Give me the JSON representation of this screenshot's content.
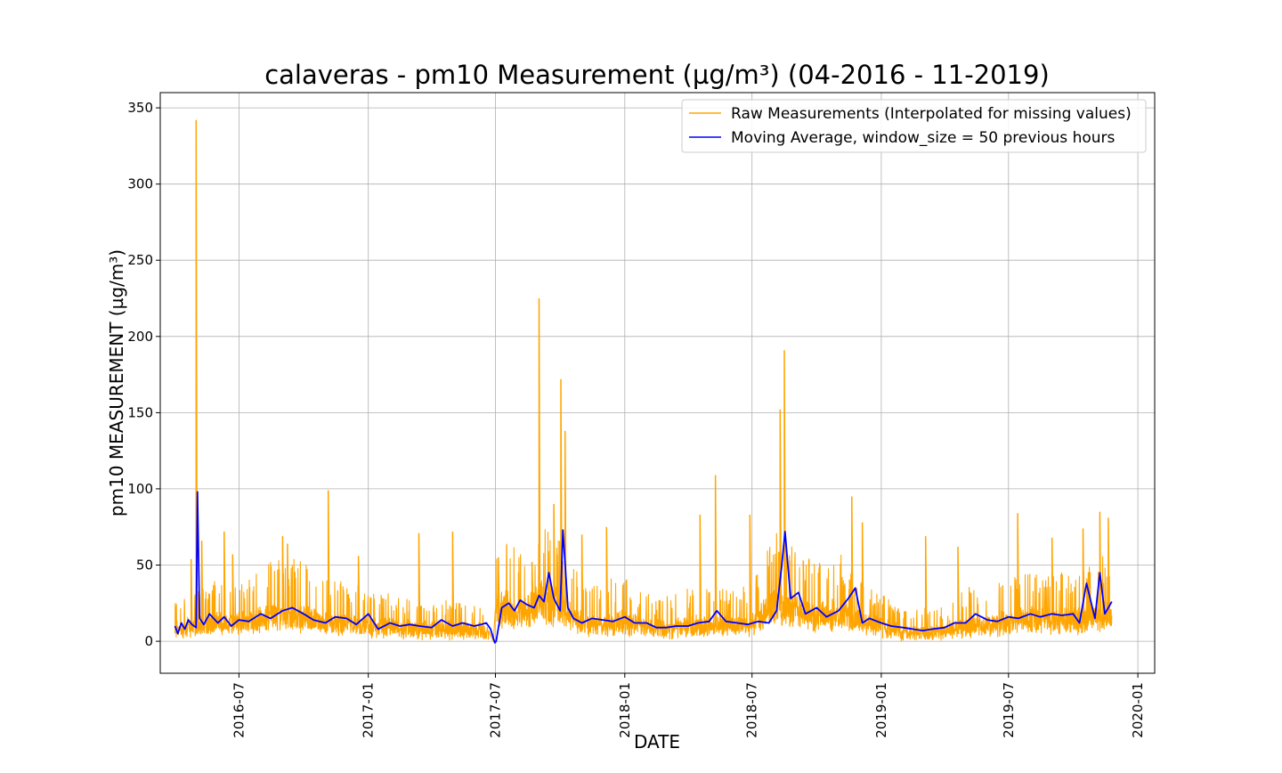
{
  "chart_data": {
    "type": "line",
    "title": "calaveras - pm10 Measurement (µg/m³) (04-2016 - 11-2019)",
    "xlabel": "DATE",
    "ylabel": "pm10 MEASUREMENT (µg/m³)",
    "xlim": [
      "2016-03-11",
      "2020-01-25"
    ],
    "ylim": [
      -21,
      360
    ],
    "yticks": [
      0,
      50,
      100,
      150,
      200,
      250,
      300,
      350
    ],
    "xticks": [
      "2016-07",
      "2017-01",
      "2017-07",
      "2018-01",
      "2018-07",
      "2019-01",
      "2019-07",
      "2020-01"
    ],
    "grid": true,
    "legend_position": "top-right",
    "series": [
      {
        "name": "Raw Measurements (Interpolated for missing values)",
        "color": "#ffa500",
        "style": "dense-noisy",
        "base": {
          "x": [
            "2016-04-01",
            "2016-05-01",
            "2016-06-01",
            "2016-07-01",
            "2016-08-01",
            "2016-09-01",
            "2016-10-01",
            "2016-11-01",
            "2016-12-01",
            "2017-01-01",
            "2017-02-01",
            "2017-03-01",
            "2017-04-01",
            "2017-05-01",
            "2017-06-01",
            "2017-06-20",
            "2017-06-28",
            "2017-07-01",
            "2017-07-20",
            "2017-08-01",
            "2017-08-15",
            "2017-09-01",
            "2017-10-01",
            "2017-11-01",
            "2017-12-01",
            "2018-01-01",
            "2018-02-01",
            "2018-03-01",
            "2018-04-01",
            "2018-05-01",
            "2018-06-01",
            "2018-07-01",
            "2018-08-01",
            "2018-09-01",
            "2018-10-01",
            "2018-11-01",
            "2018-12-01",
            "2019-01-01",
            "2019-02-01",
            "2019-03-01",
            "2019-04-01",
            "2019-05-01",
            "2019-06-01",
            "2019-07-01",
            "2019-08-01",
            "2019-09-01",
            "2019-10-01",
            "2019-11-01",
            "2019-11-25"
          ],
          "y": [
            10,
            12,
            15,
            14,
            17,
            20,
            18,
            15,
            13,
            12,
            11,
            10,
            10,
            10,
            10,
            8,
            0,
            22,
            24,
            20,
            22,
            28,
            25,
            14,
            13,
            15,
            11,
            10,
            12,
            13,
            12,
            14,
            25,
            22,
            18,
            20,
            15,
            12,
            8,
            8,
            9,
            12,
            12,
            15,
            17,
            16,
            16,
            18,
            20
          ]
        },
        "peaks": {
          "x": [
            "2016-04-24",
            "2016-05-01",
            "2016-05-09",
            "2016-06-10",
            "2016-06-22",
            "2016-09-01",
            "2016-09-08",
            "2016-11-05",
            "2016-12-18",
            "2017-03-14",
            "2017-05-01",
            "2017-07-05",
            "2017-08-22",
            "2017-09-01",
            "2017-09-22",
            "2017-10-02",
            "2017-10-08",
            "2017-11-01",
            "2017-12-06",
            "2018-04-18",
            "2018-05-10",
            "2018-06-28",
            "2018-08-10",
            "2018-08-16",
            "2018-09-12",
            "2018-11-20",
            "2018-12-05",
            "2019-03-05",
            "2019-04-20",
            "2019-07-14",
            "2019-09-01",
            "2019-10-15",
            "2019-11-08",
            "2019-11-20"
          ],
          "y": [
            54,
            342,
            66,
            72,
            57,
            69,
            64,
            99,
            56,
            71,
            72,
            55,
            52,
            225,
            90,
            172,
            138,
            70,
            75,
            83,
            109,
            83,
            152,
            191,
            53,
            95,
            78,
            69,
            62,
            84,
            68,
            74,
            85,
            81
          ]
        }
      },
      {
        "name": "Moving Average, window_size = 50 previous hours",
        "color": "#0000ff",
        "style": "smooth",
        "x": [
          "2016-04-01",
          "2016-04-05",
          "2016-04-10",
          "2016-04-15",
          "2016-04-20",
          "2016-04-25",
          "2016-05-01",
          "2016-05-03",
          "2016-05-06",
          "2016-05-12",
          "2016-05-20",
          "2016-06-01",
          "2016-06-10",
          "2016-06-20",
          "2016-07-01",
          "2016-07-15",
          "2016-08-01",
          "2016-08-15",
          "2016-09-01",
          "2016-09-15",
          "2016-10-01",
          "2016-10-15",
          "2016-11-01",
          "2016-11-15",
          "2016-12-01",
          "2016-12-15",
          "2017-01-01",
          "2017-01-15",
          "2017-02-01",
          "2017-02-15",
          "2017-03-01",
          "2017-03-15",
          "2017-04-01",
          "2017-04-15",
          "2017-05-01",
          "2017-05-15",
          "2017-06-01",
          "2017-06-10",
          "2017-06-18",
          "2017-06-24",
          "2017-06-30",
          "2017-07-02",
          "2017-07-10",
          "2017-07-20",
          "2017-07-28",
          "2017-08-05",
          "2017-08-15",
          "2017-08-25",
          "2017-09-01",
          "2017-09-08",
          "2017-09-15",
          "2017-09-22",
          "2017-10-01",
          "2017-10-05",
          "2017-10-12",
          "2017-10-20",
          "2017-11-01",
          "2017-11-15",
          "2017-12-01",
          "2017-12-15",
          "2018-01-01",
          "2018-01-15",
          "2018-02-01",
          "2018-02-15",
          "2018-03-01",
          "2018-03-15",
          "2018-04-01",
          "2018-04-15",
          "2018-05-01",
          "2018-05-12",
          "2018-05-25",
          "2018-06-10",
          "2018-06-25",
          "2018-07-10",
          "2018-07-25",
          "2018-08-05",
          "2018-08-12",
          "2018-08-17",
          "2018-08-25",
          "2018-09-05",
          "2018-09-15",
          "2018-10-01",
          "2018-10-15",
          "2018-11-01",
          "2018-11-15",
          "2018-11-25",
          "2018-12-05",
          "2018-12-15",
          "2019-01-01",
          "2019-01-15",
          "2019-02-01",
          "2019-02-15",
          "2019-03-01",
          "2019-03-15",
          "2019-04-01",
          "2019-04-15",
          "2019-05-01",
          "2019-05-15",
          "2019-06-01",
          "2019-06-15",
          "2019-07-01",
          "2019-07-15",
          "2019-08-01",
          "2019-08-15",
          "2019-09-01",
          "2019-09-15",
          "2019-10-01",
          "2019-10-10",
          "2019-10-20",
          "2019-11-01",
          "2019-11-08",
          "2019-11-15",
          "2019-11-25"
        ],
        "y": [
          10,
          5,
          12,
          8,
          14,
          11,
          9,
          98,
          15,
          11,
          18,
          12,
          16,
          10,
          14,
          13,
          18,
          15,
          20,
          22,
          18,
          14,
          12,
          16,
          15,
          11,
          18,
          8,
          12,
          10,
          11,
          10,
          9,
          14,
          10,
          12,
          10,
          11,
          12,
          8,
          -1,
          0,
          22,
          25,
          20,
          27,
          24,
          22,
          30,
          26,
          45,
          28,
          20,
          73,
          22,
          15,
          12,
          15,
          14,
          13,
          16,
          12,
          12,
          9,
          9,
          10,
          10,
          12,
          13,
          20,
          13,
          12,
          11,
          13,
          12,
          20,
          48,
          72,
          28,
          32,
          18,
          22,
          16,
          20,
          28,
          35,
          12,
          15,
          12,
          10,
          9,
          8,
          7,
          8,
          9,
          12,
          12,
          18,
          14,
          13,
          16,
          15,
          18,
          16,
          18,
          17,
          18,
          12,
          38,
          15,
          45,
          18,
          26
        ]
      }
    ]
  }
}
